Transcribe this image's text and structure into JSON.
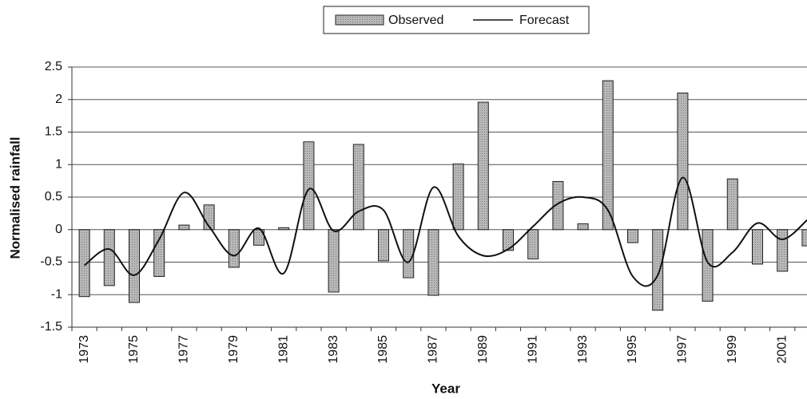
{
  "chart_data": {
    "type": "bar-line",
    "x_label": "Year",
    "y_label": "Normalised rainfall",
    "categories": [
      "1973",
      null,
      "1975",
      null,
      "1977",
      null,
      "1979",
      null,
      "1981",
      null,
      "1983",
      null,
      "1985",
      null,
      "1987",
      null,
      "1989",
      null,
      "1991",
      null,
      "1993",
      null,
      "1995",
      null,
      "1997",
      null,
      "1999",
      null,
      "2001",
      null
    ],
    "series": [
      {
        "name": "Observed",
        "type": "bar",
        "color": "#aaaaaa",
        "values": [
          -1.03,
          -0.86,
          -1.12,
          -0.72,
          0.07,
          0.38,
          -0.58,
          -0.24,
          0.03,
          1.35,
          -0.96,
          1.31,
          -0.48,
          -0.74,
          -1.01,
          1.01,
          1.96,
          -0.32,
          -0.45,
          0.74,
          0.09,
          2.29,
          -0.2,
          -1.24,
          2.1,
          -1.1,
          0.78,
          -0.53,
          -0.64,
          -0.25
        ]
      },
      {
        "name": "Forecast",
        "type": "line",
        "color": "#111111",
        "values": [
          -0.55,
          -0.3,
          -0.7,
          -0.15,
          0.57,
          0.05,
          -0.4,
          0.02,
          -0.67,
          0.62,
          -0.02,
          0.28,
          0.3,
          -0.5,
          0.65,
          -0.1,
          -0.4,
          -0.3,
          0.05,
          0.4,
          0.5,
          0.3,
          -0.72,
          -0.7,
          0.8,
          -0.5,
          -0.35,
          0.1,
          -0.15,
          0.15
        ]
      }
    ],
    "ylim": [
      -1.5,
      2.5
    ],
    "yticks": [
      -1.5,
      -1,
      -0.5,
      0,
      0.5,
      1,
      1.5,
      2,
      2.5
    ],
    "grid": true,
    "legend": "top"
  }
}
